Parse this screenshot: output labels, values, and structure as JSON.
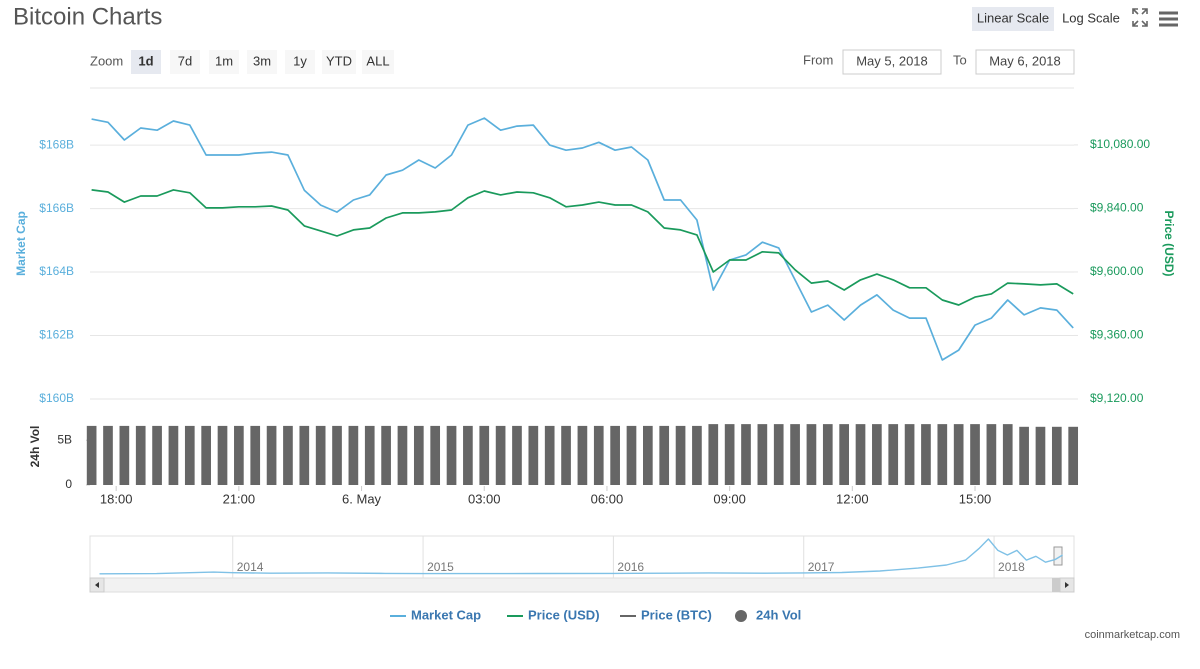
{
  "header": {
    "title": "Bitcoin Charts",
    "scale_buttons": [
      "Linear Scale",
      "Log Scale"
    ],
    "active_scale": "Linear Scale"
  },
  "range_selector": {
    "zoom_label": "Zoom",
    "buttons": [
      "1d",
      "7d",
      "1m",
      "3m",
      "1y",
      "YTD",
      "ALL"
    ],
    "active": "1d",
    "from_label": "From",
    "from": "May 5, 2018",
    "to_label": "To",
    "to": "May 6, 2018"
  },
  "chart_data": [
    {
      "type": "line",
      "ylabel": "Market Cap",
      "y2label": "Price (USD)",
      "x": [
        17.4,
        17.8,
        18.2,
        18.6,
        19,
        19.4,
        19.8,
        20.2,
        20.6,
        21,
        21.4,
        21.8,
        22.2,
        22.6,
        23,
        23.4,
        23.8,
        24.2,
        24.6,
        25,
        25.4,
        25.8,
        26.2,
        26.6,
        27,
        27.4,
        27.8,
        28.2,
        28.6,
        29,
        29.4,
        29.8,
        30.2,
        30.6,
        31,
        31.4,
        31.8,
        32.2,
        32.6,
        33,
        33.4,
        33.8,
        34.2,
        34.6,
        35,
        35.4,
        35.8,
        36.2,
        36.6,
        37,
        37.4,
        37.8,
        38.2,
        38.6,
        39,
        39.4,
        39.8,
        40.2,
        40.6,
        41,
        41.4
      ],
      "xlim": [
        17.36,
        41.42
      ],
      "xticks": [
        {
          "value": 18,
          "label": "18:00"
        },
        {
          "value": 21,
          "label": "21:00"
        },
        {
          "value": 24,
          "label": "6. May"
        },
        {
          "value": 27,
          "label": "03:00"
        },
        {
          "value": 30,
          "label": "06:00"
        },
        {
          "value": 33,
          "label": "09:00"
        },
        {
          "value": 36,
          "label": "12:00"
        },
        {
          "value": 39,
          "label": "15:00"
        }
      ],
      "ylim": [
        160,
        169.8
      ],
      "yticks": [
        {
          "value": 160,
          "label": "$160B"
        },
        {
          "value": 162,
          "label": "$162B"
        },
        {
          "value": 164,
          "label": "$164B"
        },
        {
          "value": 166,
          "label": "$166B"
        },
        {
          "value": 168,
          "label": "$168B"
        }
      ],
      "y2lim": [
        9120,
        10295
      ],
      "y2ticks": [
        {
          "value": 9120,
          "label": "$9,120.00"
        },
        {
          "value": 9360,
          "label": "$9,360.00"
        },
        {
          "value": 9600,
          "label": "$9,600.00"
        },
        {
          "value": 9840,
          "label": "$9,840.00"
        },
        {
          "value": 10080,
          "label": "$10,080.00"
        }
      ],
      "grid": true,
      "log_scale": false,
      "series": [
        {
          "name": "Market Cap",
          "color": "#5aafdc",
          "values": [
            168.82,
            168.72,
            168.16,
            168.54,
            168.47,
            168.76,
            168.63,
            167.69,
            167.69,
            167.69,
            167.75,
            167.78,
            167.69,
            166.58,
            166.11,
            165.89,
            166.27,
            166.43,
            167.06,
            167.21,
            167.53,
            167.28,
            167.69,
            168.63,
            168.85,
            168.47,
            168.6,
            168.63,
            168,
            167.84,
            167.91,
            168.09,
            167.84,
            167.94,
            167.53,
            166.27,
            166.27,
            165.64,
            163.43,
            164.38,
            164.54,
            164.94,
            164.76,
            163.75,
            162.74,
            162.96,
            162.49,
            162.96,
            163.28,
            162.8,
            162.55,
            162.55,
            161.23,
            161.54,
            162.33,
            162.55,
            163.12,
            162.65,
            162.87,
            162.8,
            162.24
          ]
        },
        {
          "name": "Price (USD)",
          "color": "#1a9a5c",
          "axis": "y2",
          "values": [
            9910,
            9902,
            9864,
            9887,
            9887,
            9910,
            9899,
            9842,
            9842,
            9846,
            9846,
            9849,
            9834,
            9774,
            9755,
            9736,
            9759,
            9766,
            9804,
            9823,
            9823,
            9827,
            9834,
            9880,
            9906,
            9891,
            9902,
            9899,
            9880,
            9846,
            9853,
            9864,
            9853,
            9853,
            9827,
            9766,
            9759,
            9740,
            9600,
            9645,
            9645,
            9676,
            9672,
            9608,
            9558,
            9566,
            9532,
            9570,
            9592,
            9570,
            9540,
            9540,
            9494,
            9475,
            9505,
            9517,
            9558,
            9555,
            9551,
            9555,
            9517
          ]
        }
      ]
    },
    {
      "type": "bar",
      "ylabel": "24h Vol",
      "x": [
        17.4,
        17.8,
        18.2,
        18.6,
        19,
        19.4,
        19.8,
        20.2,
        20.6,
        21,
        21.4,
        21.8,
        22.2,
        22.6,
        23,
        23.4,
        23.8,
        24.2,
        24.6,
        25,
        25.4,
        25.8,
        26.2,
        26.6,
        27,
        27.4,
        27.8,
        28.2,
        28.6,
        29,
        29.4,
        29.8,
        30.2,
        30.6,
        31,
        31.4,
        31.8,
        32.2,
        32.6,
        33,
        33.4,
        33.8,
        34.2,
        34.6,
        35,
        35.4,
        35.8,
        36.2,
        36.6,
        37,
        37.4,
        37.8,
        38.2,
        38.6,
        39,
        39.4,
        39.8,
        40.2,
        40.6,
        41,
        41.4
      ],
      "xlim": [
        17.36,
        41.42
      ],
      "ylim": [
        0,
        8.6
      ],
      "yticks": [
        0,
        {
          "value": 5,
          "label": "5B"
        }
      ],
      "grid": false,
      "series": [
        {
          "name": "24h Vol",
          "color": "#666666",
          "values": [
            6.6,
            6.6,
            6.6,
            6.6,
            6.6,
            6.6,
            6.6,
            6.6,
            6.6,
            6.6,
            6.6,
            6.6,
            6.6,
            6.6,
            6.6,
            6.6,
            6.6,
            6.6,
            6.6,
            6.6,
            6.6,
            6.6,
            6.6,
            6.6,
            6.6,
            6.6,
            6.6,
            6.6,
            6.6,
            6.6,
            6.6,
            6.6,
            6.6,
            6.6,
            6.6,
            6.6,
            6.6,
            6.6,
            6.8,
            6.8,
            6.8,
            6.8,
            6.8,
            6.8,
            6.8,
            6.8,
            6.8,
            6.8,
            6.8,
            6.8,
            6.8,
            6.8,
            6.8,
            6.8,
            6.8,
            6.8,
            6.8,
            6.5,
            6.5,
            6.5,
            6.5
          ]
        }
      ]
    },
    {
      "type": "line",
      "x": [
        2013.3,
        2013.6,
        2013.9,
        2014,
        2014.2,
        2014.5,
        2014.8,
        2015,
        2015.3,
        2015.6,
        2016,
        2016.3,
        2016.5,
        2016.8,
        2017,
        2017.2,
        2017.4,
        2017.6,
        2017.75,
        2017.85,
        2017.92,
        2017.97,
        2018.02,
        2018.07,
        2018.12,
        2018.17,
        2018.22,
        2018.27,
        2018.32,
        2018.36
      ],
      "values": [
        5,
        10,
        45,
        30,
        20,
        25,
        15,
        10,
        10,
        12,
        15,
        18,
        25,
        20,
        25,
        35,
        70,
        140,
        212,
        330,
        600,
        830,
        560,
        450,
        560,
        330,
        420,
        280,
        340,
        450
      ],
      "color": "#7fc1e6",
      "xlim": [
        2013.25,
        2018.42
      ],
      "xticks": [
        2014,
        2015,
        2016,
        2017,
        2018
      ],
      "ylim": [
        0,
        900
      ],
      "grid": true
    }
  ],
  "legend": {
    "extra_items": [
      {
        "name": "Price (BTC)",
        "color": "#666666"
      }
    ]
  },
  "credit": "coinmarketcap.com"
}
